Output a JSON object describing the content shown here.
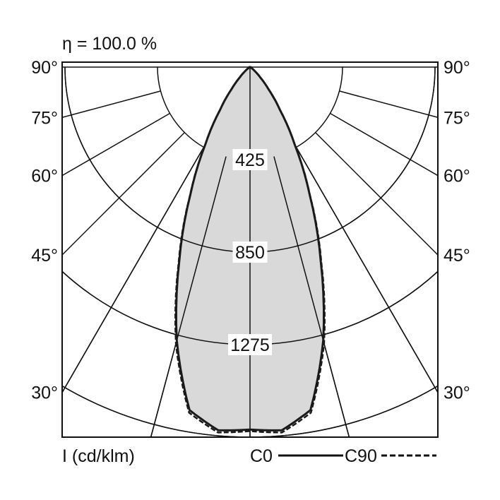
{
  "chart_data": {
    "type": "polar-line",
    "title": "η = 100.0 %",
    "unit_label": "I (cd/klm)",
    "radial_ticks": [
      425,
      850,
      1275
    ],
    "radial_gridlines": [
      425,
      850,
      1275,
      1700
    ],
    "angle_ticks": [
      "90°",
      "75°",
      "60°",
      "45°",
      "30°"
    ],
    "angle_gridlines_deg": [
      0,
      15,
      30,
      45,
      60,
      75,
      90
    ],
    "angles_deg": [
      0,
      5,
      10,
      15,
      20,
      25,
      30,
      35,
      40,
      45,
      50,
      55,
      60,
      70,
      80,
      90
    ],
    "series": [
      {
        "name": "C0",
        "style": "solid",
        "values": [
          1665,
          1675,
          1600,
          1300,
          950,
          650,
          410,
          240,
          130,
          65,
          30,
          14,
          6,
          2,
          1,
          0
        ]
      },
      {
        "name": "C90",
        "style": "dashed",
        "values": [
          1672,
          1685,
          1612,
          1315,
          960,
          655,
          412,
          240,
          130,
          65,
          30,
          14,
          6,
          2,
          1,
          0
        ]
      }
    ],
    "fill_color": "#d9d9d9",
    "line_color": "#1a1a1a"
  }
}
